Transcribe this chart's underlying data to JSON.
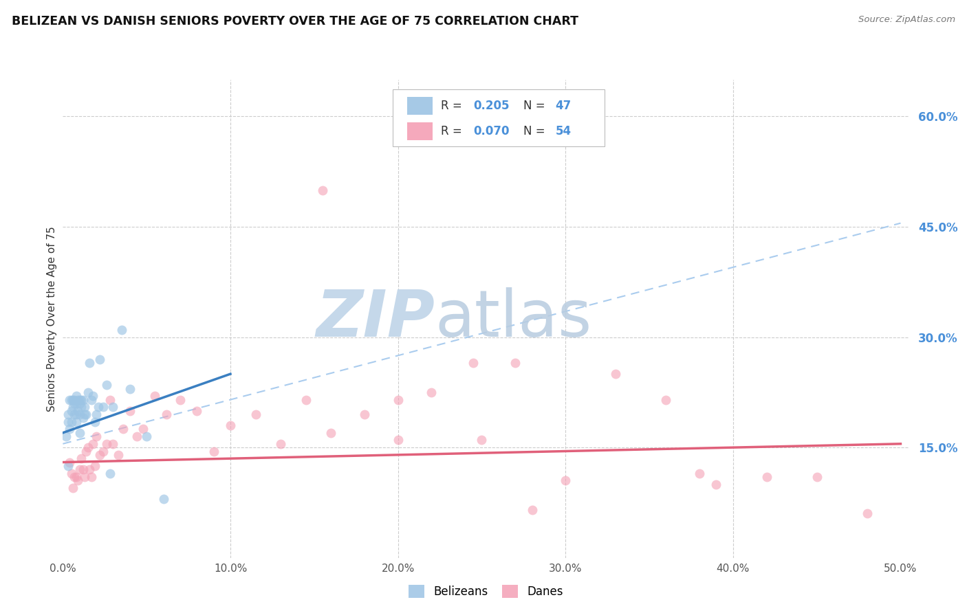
{
  "title": "BELIZEAN VS DANISH SENIORS POVERTY OVER THE AGE OF 75 CORRELATION CHART",
  "source": "Source: ZipAtlas.com",
  "ylabel": "Seniors Poverty Over the Age of 75",
  "xlim": [
    0.0,
    0.505
  ],
  "ylim": [
    0.0,
    0.65
  ],
  "xticks": [
    0.0,
    0.1,
    0.2,
    0.3,
    0.4,
    0.5
  ],
  "xtick_labels": [
    "0.0%",
    "10.0%",
    "20.0%",
    "30.0%",
    "40.0%",
    "50.0%"
  ],
  "ytick_right_values": [
    0.15,
    0.3,
    0.45,
    0.6
  ],
  "ytick_right_labels": [
    "15.0%",
    "30.0%",
    "45.0%",
    "60.0%"
  ],
  "belizean_color": "#9cc4e4",
  "danish_color": "#f4a0b5",
  "belizean_line_color": "#3a7fc1",
  "danish_line_color": "#e0607a",
  "dash_line_color": "#aaccee",
  "watermark_zip_color": "#c5d8ea",
  "watermark_atlas_color": "#b8cce0",
  "background_color": "#ffffff",
  "grid_color": "#cccccc",
  "title_fontsize": 12.5,
  "marker_size": 100,
  "belizean_alpha": 0.65,
  "danish_alpha": 0.6,
  "belizean_x": [
    0.002,
    0.003,
    0.003,
    0.004,
    0.004,
    0.005,
    0.005,
    0.005,
    0.006,
    0.006,
    0.007,
    0.007,
    0.007,
    0.008,
    0.008,
    0.008,
    0.009,
    0.009,
    0.01,
    0.01,
    0.01,
    0.011,
    0.011,
    0.012,
    0.012,
    0.013,
    0.013,
    0.014,
    0.015,
    0.016,
    0.017,
    0.018,
    0.019,
    0.02,
    0.021,
    0.022,
    0.024,
    0.026,
    0.028,
    0.03,
    0.035,
    0.04,
    0.05,
    0.06,
    0.003,
    0.008,
    0.01
  ],
  "belizean_y": [
    0.165,
    0.195,
    0.185,
    0.215,
    0.175,
    0.215,
    0.2,
    0.185,
    0.215,
    0.205,
    0.215,
    0.21,
    0.195,
    0.22,
    0.21,
    0.195,
    0.215,
    0.2,
    0.215,
    0.21,
    0.195,
    0.215,
    0.205,
    0.215,
    0.19,
    0.205,
    0.195,
    0.195,
    0.225,
    0.265,
    0.215,
    0.22,
    0.185,
    0.195,
    0.205,
    0.27,
    0.205,
    0.235,
    0.115,
    0.205,
    0.31,
    0.23,
    0.165,
    0.08,
    0.125,
    0.185,
    0.17
  ],
  "danish_x": [
    0.004,
    0.005,
    0.006,
    0.007,
    0.008,
    0.009,
    0.01,
    0.011,
    0.012,
    0.013,
    0.014,
    0.015,
    0.016,
    0.017,
    0.018,
    0.019,
    0.02,
    0.022,
    0.024,
    0.026,
    0.028,
    0.03,
    0.033,
    0.036,
    0.04,
    0.044,
    0.048,
    0.055,
    0.062,
    0.07,
    0.08,
    0.09,
    0.1,
    0.115,
    0.13,
    0.145,
    0.16,
    0.18,
    0.2,
    0.22,
    0.245,
    0.27,
    0.3,
    0.33,
    0.36,
    0.39,
    0.42,
    0.45,
    0.38,
    0.28,
    0.25,
    0.2,
    0.155,
    0.48
  ],
  "danish_y": [
    0.13,
    0.115,
    0.095,
    0.11,
    0.11,
    0.105,
    0.12,
    0.135,
    0.12,
    0.11,
    0.145,
    0.15,
    0.12,
    0.11,
    0.155,
    0.125,
    0.165,
    0.14,
    0.145,
    0.155,
    0.215,
    0.155,
    0.14,
    0.175,
    0.2,
    0.165,
    0.175,
    0.22,
    0.195,
    0.215,
    0.2,
    0.145,
    0.18,
    0.195,
    0.155,
    0.215,
    0.17,
    0.195,
    0.16,
    0.225,
    0.265,
    0.265,
    0.105,
    0.25,
    0.215,
    0.1,
    0.11,
    0.11,
    0.115,
    0.065,
    0.16,
    0.215,
    0.5,
    0.06
  ],
  "belizean_line_x0": 0.0,
  "belizean_line_y0": 0.17,
  "belizean_line_x1": 0.1,
  "belizean_line_y1": 0.25,
  "danish_line_x0": 0.0,
  "danish_line_y0": 0.13,
  "danish_line_x1": 0.5,
  "danish_line_y1": 0.155,
  "dash_line_x0": 0.0,
  "dash_line_y0": 0.155,
  "dash_line_x1": 0.5,
  "dash_line_y1": 0.455
}
